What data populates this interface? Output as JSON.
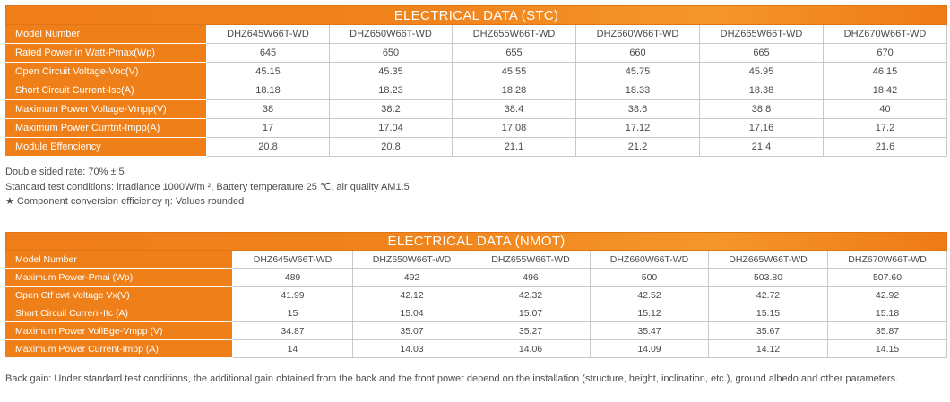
{
  "stc": {
    "title": "ELECTRICAL DATA (STC)",
    "header_label": "Model Number",
    "models": [
      "DHZ645W66T-WD",
      "DHZ650W66T-WD",
      "DHZ655W66T-WD",
      "DHZ660W66T-WD",
      "DHZ665W66T-WD",
      "DHZ670W66T-WD"
    ],
    "rows": [
      {
        "label": "Rated Power in Watt-Pmax(Wp)",
        "values": [
          "645",
          "650",
          "655",
          "660",
          "665",
          "670"
        ]
      },
      {
        "label": "Open Circuit Voltage-Voc(V)",
        "values": [
          "45.15",
          "45.35",
          "45.55",
          "45.75",
          "45.95",
          "46.15"
        ]
      },
      {
        "label": "Short Circuit Current-Isc(A)",
        "values": [
          "18.18",
          "18.23",
          "18.28",
          "18.33",
          "18.38",
          "18.42"
        ]
      },
      {
        "label": "Maximum Power Voltage-Vmpp(V)",
        "values": [
          "38",
          "38.2",
          "38.4",
          "38.6",
          "38.8",
          "40"
        ]
      },
      {
        "label": "Maximum Power Currtnt-Impp(A)",
        "values": [
          "17",
          "17.04",
          "17.08",
          "17.12",
          "17.16",
          "17.2"
        ]
      },
      {
        "label": "Module Effenciency",
        "values": [
          "20.8",
          "20.8",
          "21.1",
          "21.2",
          "21.4",
          "21.6"
        ]
      }
    ]
  },
  "notes": {
    "double_sided": "Double sided rate: 70% ± 5",
    "test_conditions": "Standard test conditions: irradiance 1000W/m ²,   Battery temperature 25 ℃, air quality AM1.5",
    "efficiency_note": "★ Component conversion efficiency η:  Values rounded"
  },
  "nmot": {
    "title": "ELECTRICAL DATA (NMOT)",
    "header_label": "Model Number",
    "models": [
      "DHZ645W66T-WD",
      "DHZ650W66T-WD",
      "DHZ655W66T-WD",
      "DHZ660W66T-WD",
      "DHZ665W66T-WD",
      "DHZ670W66T-WD"
    ],
    "rows": [
      {
        "label": "Maximum Power-Pmai (Wp)",
        "values": [
          "489",
          "492",
          "496",
          "500",
          "503.80",
          "507.60"
        ]
      },
      {
        "label": "Open Ctf cwt Voltage Vx(V)",
        "values": [
          "41.99",
          "42.12",
          "42.32",
          "42.52",
          "42.72",
          "42.92"
        ]
      },
      {
        "label": "Short Circuil Currenl-Itc (A)",
        "values": [
          "15",
          "15.04",
          "15.07",
          "15.12",
          "15.15",
          "15.18"
        ]
      },
      {
        "label": "Maximum Power VollBge-Vmpp (V)",
        "values": [
          "34.87",
          "35.07",
          "35.27",
          "35.47",
          "35.67",
          "35.87"
        ]
      },
      {
        "label": "Maximum Power Current-Impp (A)",
        "values": [
          "14",
          "14.03",
          "14.06",
          "14.09",
          "14.12",
          "14.15"
        ]
      }
    ]
  },
  "back_gain_note": "Back gain: Under standard test conditions, the additional gain obtained from the back and the front power depend on the installation (structure, height, inclination, etc.), ground albedo and other parameters.",
  "colors": {
    "accent_orange": "#ef7f19",
    "border_gray": "#c9c9c9",
    "text_gray": "#444444"
  }
}
